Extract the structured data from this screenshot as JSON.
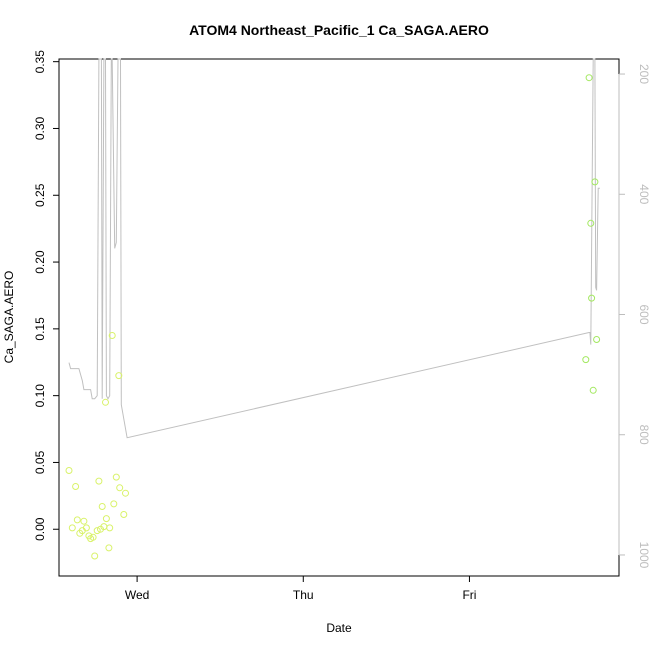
{
  "chart_data": {
    "type": "scatter",
    "title": "ATOM4 Northeast_Pacific_1 Ca_SAGA.AERO",
    "xlabel": "Date",
    "ylabel": "Ca_SAGA.AERO",
    "x_ticks": [
      "Wed",
      "Thu",
      "Fri"
    ],
    "x_tick_positions": [
      1.0,
      2.0,
      3.0
    ],
    "xlim": [
      0.53,
      3.9
    ],
    "ylim": [
      -0.035,
      0.352
    ],
    "y_ticks": [
      "0.00",
      "0.05",
      "0.10",
      "0.15",
      "0.20",
      "0.25",
      "0.30",
      "0.35"
    ],
    "y_tick_values": [
      0.0,
      0.05,
      0.1,
      0.15,
      0.2,
      0.25,
      0.3,
      0.35
    ],
    "y2_ticks": [
      "200",
      "400",
      "600",
      "800",
      "1000"
    ],
    "y2_tick_values": [
      200,
      400,
      600,
      800,
      1000
    ],
    "y2lim": [
      1035,
      175
    ],
    "grid": false,
    "colors": {
      "points_early": "#d9f26a",
      "points_late": "#a3e860",
      "line": "#c0c0c0",
      "axis": "#000000",
      "right_axis": "#bdbdbd"
    },
    "series": [
      {
        "values": [
          [
            0.59,
            0.044
          ],
          [
            0.61,
            0.001
          ],
          [
            0.63,
            0.032
          ],
          [
            0.64,
            0.007
          ],
          [
            0.655,
            -0.003
          ],
          [
            0.67,
            -0.001
          ],
          [
            0.68,
            0.006
          ],
          [
            0.695,
            0.001
          ],
          [
            0.71,
            -0.005
          ],
          [
            0.72,
            -0.007
          ],
          [
            0.735,
            -0.006
          ],
          [
            0.745,
            -0.02
          ],
          [
            0.76,
            -0.001
          ],
          [
            0.77,
            0.036
          ],
          [
            0.78,
            0.0
          ],
          [
            0.79,
            0.017
          ],
          [
            0.8,
            0.002
          ],
          [
            0.81,
            0.095
          ],
          [
            0.815,
            0.008
          ],
          [
            0.83,
            -0.014
          ],
          [
            0.835,
            0.001
          ],
          [
            0.85,
            0.145
          ],
          [
            0.86,
            0.019
          ],
          [
            0.875,
            0.039
          ],
          [
            0.89,
            0.115
          ],
          [
            0.895,
            0.031
          ],
          [
            0.92,
            0.011
          ],
          [
            0.93,
            0.027
          ]
        ]
      },
      {
        "values": [
          [
            3.7,
            0.127
          ],
          [
            3.72,
            0.338
          ],
          [
            3.73,
            0.229
          ],
          [
            3.735,
            0.173
          ],
          [
            3.745,
            0.104
          ],
          [
            3.755,
            0.26
          ],
          [
            3.765,
            0.142
          ]
        ]
      },
      {
        "axis": "right",
        "values": [
          [
            0.59,
            680
          ],
          [
            0.6,
            690
          ],
          [
            0.62,
            690
          ],
          [
            0.65,
            690
          ],
          [
            0.67,
            710
          ],
          [
            0.68,
            725
          ],
          [
            0.72,
            725
          ],
          [
            0.73,
            740
          ],
          [
            0.745,
            740
          ],
          [
            0.76,
            735
          ],
          [
            0.77,
            170
          ],
          [
            0.785,
            170
          ],
          [
            0.79,
            740
          ],
          [
            0.8,
            170
          ],
          [
            0.81,
            170
          ],
          [
            0.815,
            735
          ],
          [
            0.825,
            740
          ],
          [
            0.835,
            735
          ],
          [
            0.845,
            170
          ],
          [
            0.85,
            170
          ],
          [
            0.865,
            490
          ],
          [
            0.875,
            480
          ],
          [
            0.885,
            170
          ],
          [
            0.9,
            170
          ],
          [
            0.905,
            750
          ],
          [
            0.94,
            805
          ],
          [
            3.72,
            630
          ],
          [
            3.725,
            630
          ],
          [
            3.73,
            650
          ],
          [
            3.745,
            170
          ],
          [
            3.755,
            170
          ],
          [
            3.76,
            555
          ],
          [
            3.765,
            560
          ],
          [
            3.775,
            390
          ],
          [
            3.785,
            390
          ]
        ]
      }
    ]
  }
}
